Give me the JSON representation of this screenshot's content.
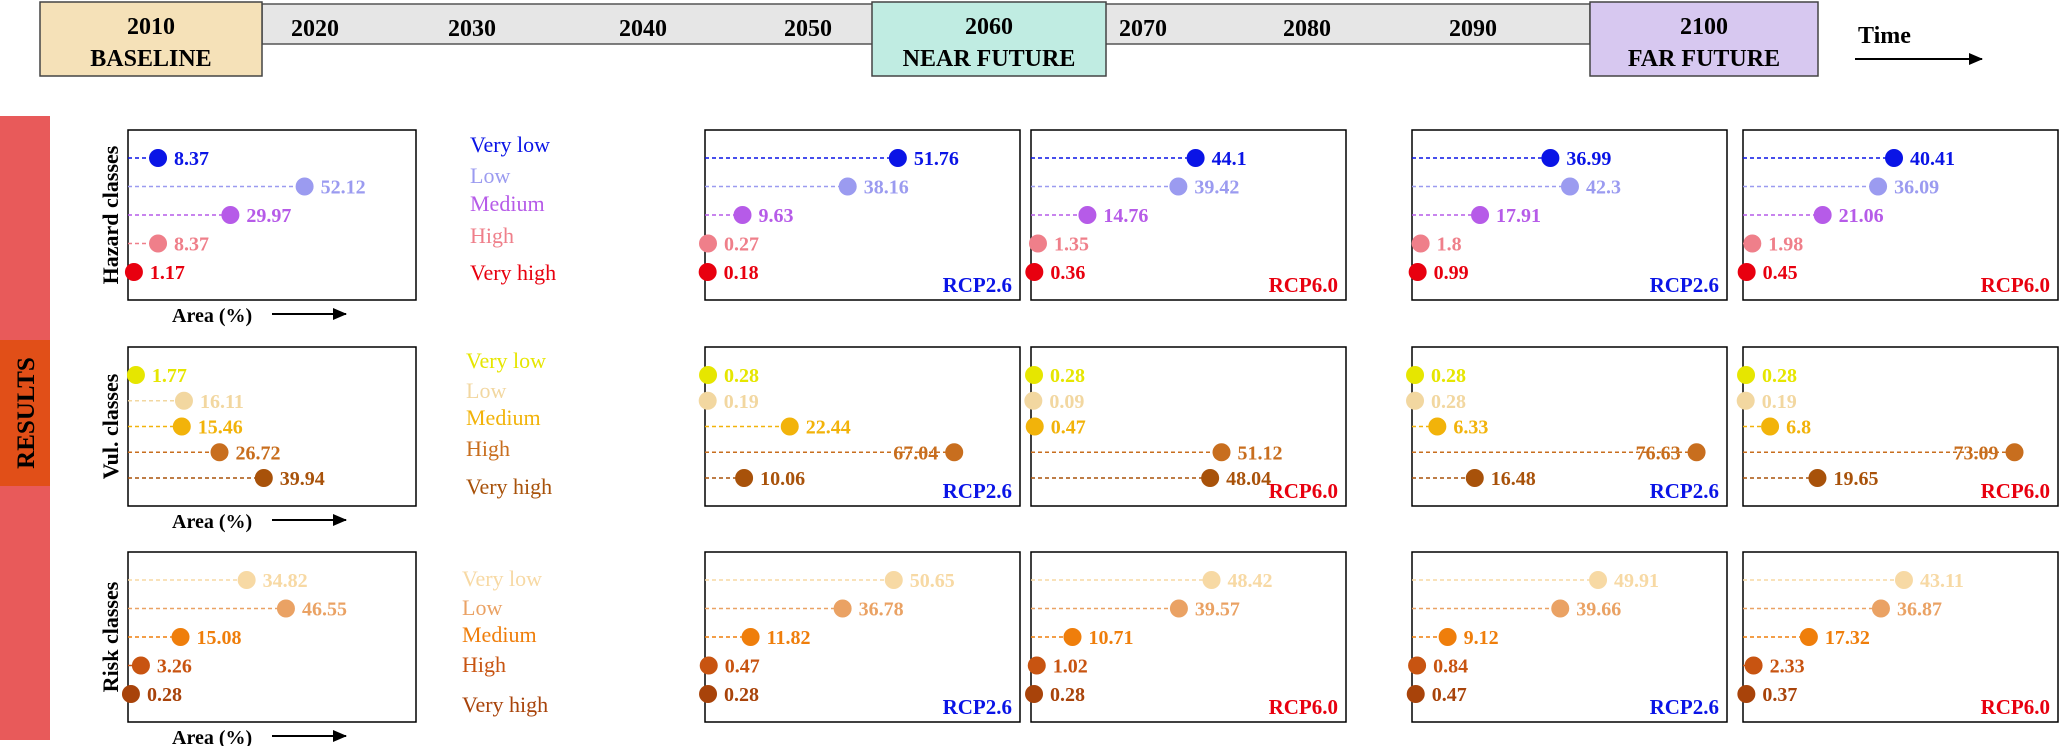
{
  "timeline": {
    "years": [
      "2020",
      "2030",
      "2040",
      "2050",
      "2070",
      "2080",
      "2090"
    ],
    "baseline": {
      "year": "2010",
      "label": "BASELINE"
    },
    "near": {
      "year": "2060",
      "label": "NEAR FUTURE"
    },
    "far": {
      "year": "2100",
      "label": "FAR FUTURE"
    },
    "time_label": "Time"
  },
  "results_label": "RESULTS",
  "area_label": "Area (%)",
  "colors": {
    "very_low_h": "#0a14e6",
    "low_h": "#9b9bf0",
    "medium_h": "#b65be8",
    "high_h": "#ef7f8a",
    "very_high_h": "#e8000f",
    "very_low_v": "#e6e600",
    "low_v": "#f2d7a0",
    "medium_v": "#f2b30a",
    "high_v": "#c86e1e",
    "very_high_v": "#a8520a",
    "very_low_r": "#f7d9a4",
    "low_r": "#eaa264",
    "medium_r": "#ef7e0b",
    "high_r": "#c85411",
    "very_high_r": "#a8430a",
    "rcp26": "#0a14e6",
    "rcp60": "#e8000f",
    "baseline_box": "#f5e1b8",
    "near_box": "#c0ece2",
    "far_box": "#d7c8f0",
    "results_bar": "#e85a5a",
    "results_box": "#e14f18"
  },
  "classes": {
    "hazard": {
      "axis_label": "Hazard classes",
      "labels": [
        "Very low",
        "Low",
        "Medium",
        "High",
        "Very high"
      ],
      "baseline": [
        8.37,
        52.12,
        29.97,
        8.37,
        1.17
      ],
      "panels": [
        {
          "scenario": "RCP2.6",
          "values": [
            51.76,
            38.16,
            9.63,
            0.27,
            0.18
          ]
        },
        {
          "scenario": "RCP6.0",
          "values": [
            44.1,
            39.42,
            14.76,
            1.35,
            0.36
          ]
        },
        {
          "scenario": "RCP2.6",
          "values": [
            36.99,
            42.3,
            17.91,
            1.8,
            0.99
          ]
        },
        {
          "scenario": "RCP6.0",
          "values": [
            40.41,
            36.09,
            21.06,
            1.98,
            0.45
          ]
        }
      ]
    },
    "vulnerability": {
      "axis_label": "Vul. classes",
      "labels": [
        "Very low",
        "Low",
        "Medium",
        "High",
        "Very high"
      ],
      "baseline": [
        1.77,
        16.11,
        15.46,
        26.72,
        39.94
      ],
      "panels": [
        {
          "scenario": "RCP2.6",
          "values": [
            0.28,
            0.19,
            22.44,
            67.04,
            10.06
          ]
        },
        {
          "scenario": "RCP6.0",
          "values": [
            0.28,
            0.09,
            0.47,
            51.12,
            48.04
          ]
        },
        {
          "scenario": "RCP2.6",
          "values": [
            0.28,
            0.28,
            6.33,
            76.63,
            16.48
          ]
        },
        {
          "scenario": "RCP6.0",
          "values": [
            0.28,
            0.19,
            6.8,
            73.09,
            19.65
          ]
        }
      ]
    },
    "risk": {
      "axis_label": "Risk classes",
      "labels": [
        "Very low",
        "Low",
        "Medium",
        "High",
        "Very high"
      ],
      "baseline": [
        34.82,
        46.55,
        15.08,
        3.26,
        0.28
      ],
      "panels": [
        {
          "scenario": "RCP2.6",
          "values": [
            50.65,
            36.78,
            11.82,
            0.47,
            0.28
          ]
        },
        {
          "scenario": "RCP6.0",
          "values": [
            48.42,
            39.57,
            10.71,
            1.02,
            0.28
          ]
        },
        {
          "scenario": "RCP2.6",
          "values": [
            49.91,
            39.66,
            9.12,
            0.84,
            0.47
          ]
        },
        {
          "scenario": "RCP6.0",
          "values": [
            43.11,
            36.87,
            17.32,
            2.33,
            0.37
          ]
        }
      ]
    }
  }
}
